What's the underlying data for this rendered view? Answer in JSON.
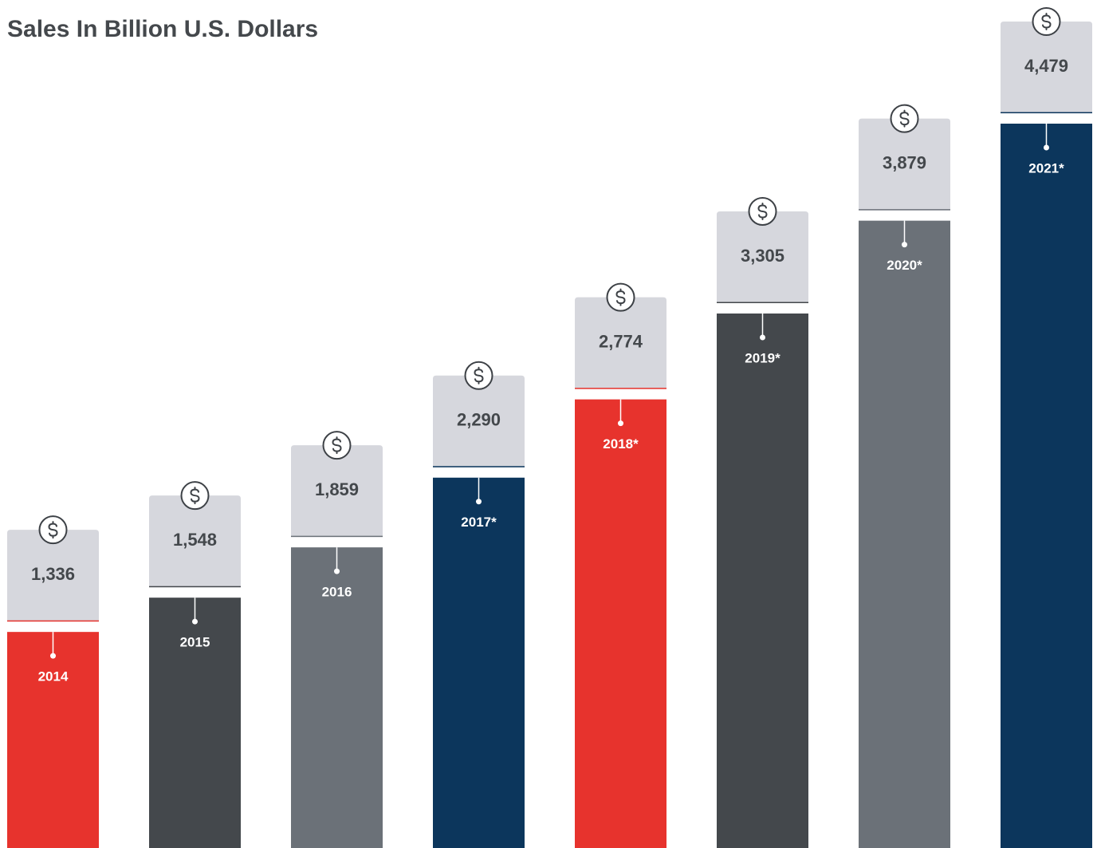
{
  "chart_data": {
    "type": "bar",
    "title": "Sales In Billion U.S. Dollars",
    "categories": [
      "2014",
      "2015",
      "2016",
      "2017*",
      "2018*",
      "2019*",
      "2020*",
      "2021*"
    ],
    "values": [
      1336,
      1548,
      1859,
      2290,
      2774,
      3305,
      3879,
      4479
    ],
    "value_labels": [
      "1,336",
      "1,548",
      "1,859",
      "2,290",
      "2,774",
      "3,305",
      "3,879",
      "4,479"
    ],
    "colors": [
      "#e7332d",
      "#44484c",
      "#6b7178",
      "#0c365c",
      "#e7332d",
      "#44484c",
      "#6b7178",
      "#0c365c"
    ]
  }
}
